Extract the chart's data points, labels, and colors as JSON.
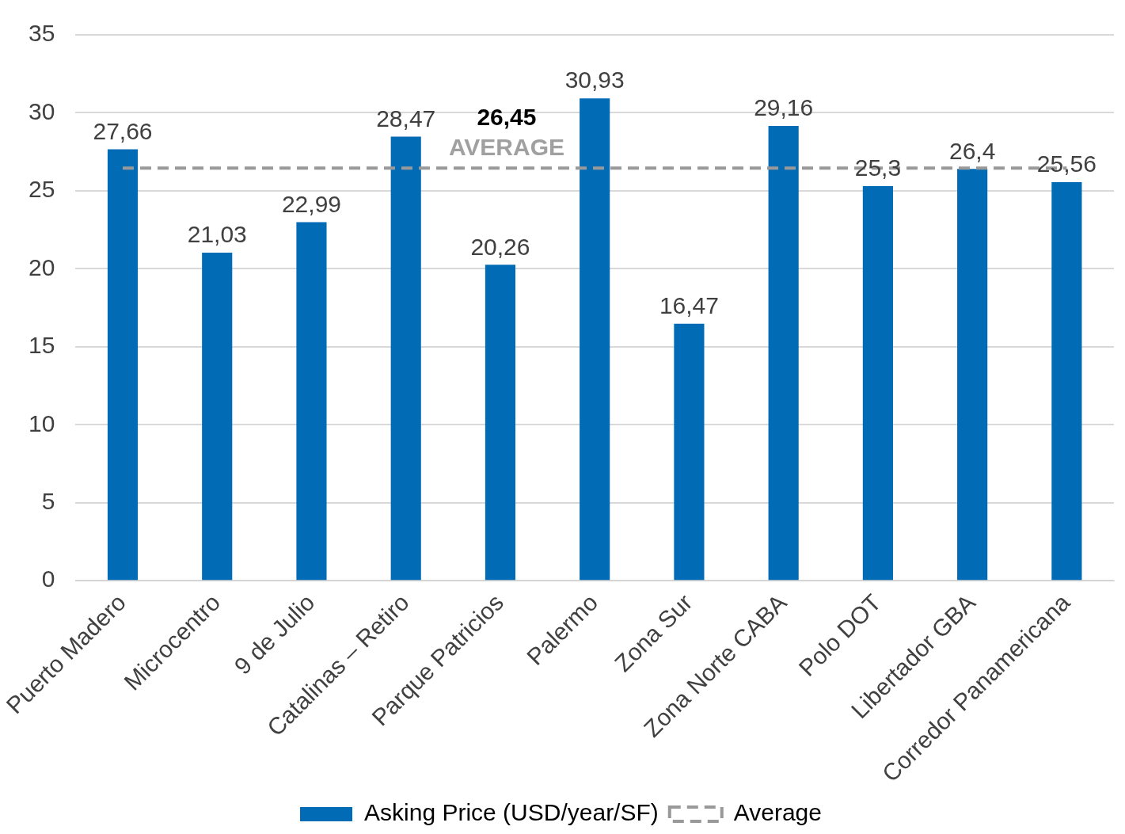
{
  "chart_data": {
    "type": "bar",
    "categories": [
      "Puerto Madero",
      "Microcentro",
      "9 de Julio",
      "Catalinas – Retiro",
      "Parque Patricios",
      "Palermo",
      "Zona Sur",
      "Zona Norte CABA",
      "Polo DOT",
      "Libertador GBA",
      "Corredor Panamericana"
    ],
    "series": [
      {
        "name": "Asking Price (USD/year/SF)",
        "color": "#026bb5",
        "values": [
          27.66,
          21.03,
          22.99,
          28.47,
          20.26,
          30.93,
          16.47,
          29.16,
          25.3,
          26.4,
          25.56
        ],
        "value_labels": [
          "27,66",
          "21,03",
          "22,99",
          "28,47",
          "20,26",
          "30,93",
          "16,47",
          "29,16",
          "25,3",
          "26,4",
          "25,56"
        ]
      },
      {
        "name": "Average",
        "type": "line",
        "color": "#999999",
        "line_style": "dashed",
        "marker": "none",
        "values": [
          26.45,
          26.45,
          26.45,
          26.45,
          26.45,
          26.45,
          26.45,
          26.45,
          26.45,
          26.45,
          26.45
        ]
      }
    ],
    "annotations": [
      {
        "text": "26,45",
        "x": "Parque Patricios",
        "y": 26.45
      },
      {
        "text": "AVERAGE",
        "x": "Parque Patricios",
        "y": 26.45
      }
    ],
    "ylim": [
      0,
      35
    ],
    "yticks": [
      0,
      5,
      10,
      15,
      20,
      25,
      30,
      35
    ],
    "grid": "y",
    "legend": "bottom"
  }
}
